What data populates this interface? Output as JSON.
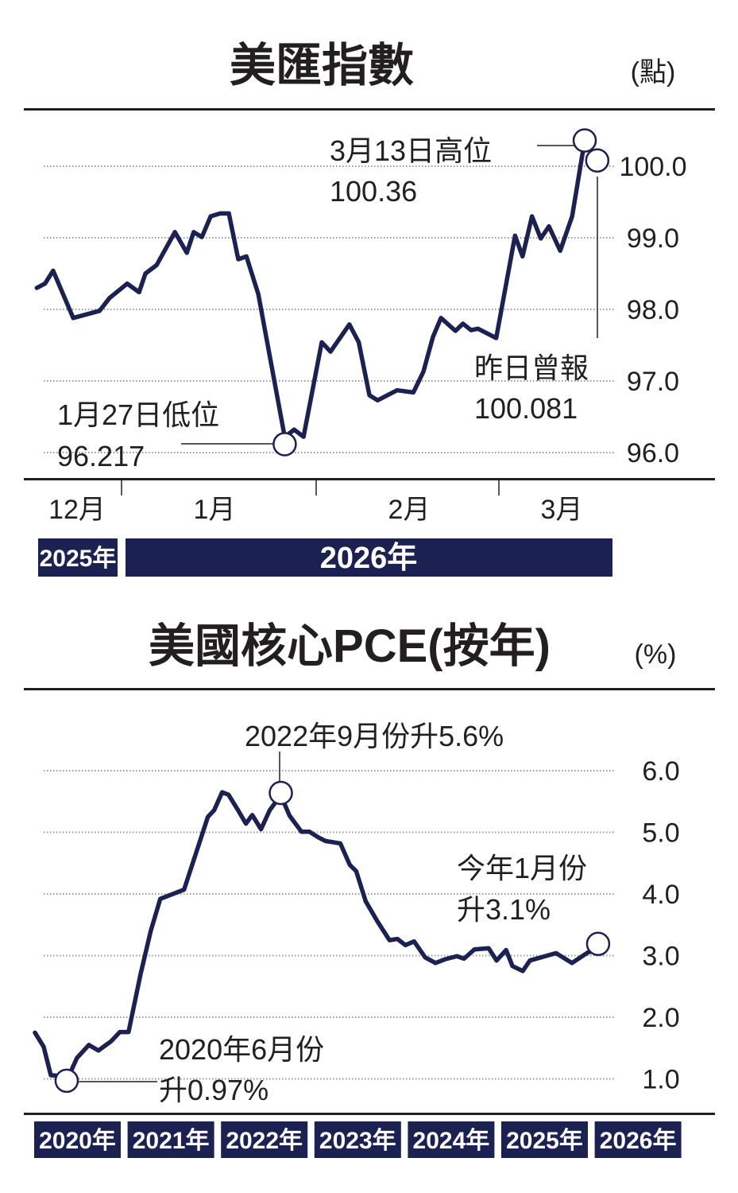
{
  "colors": {
    "line": "#1b2150",
    "bar": "#1b2150",
    "text": "#231f20",
    "grid": "#9a9a9a"
  },
  "chart_data": [
    {
      "type": "line",
      "title": "美匯指數",
      "unit": "(點)",
      "x_unit": "days from 2026-01-01",
      "ylim": [
        96.0,
        100.0
      ],
      "yticks": [
        "100.0",
        "99.0",
        "98.0",
        "97.0",
        "96.0"
      ],
      "ytick_values": [
        100,
        99,
        98,
        97,
        96
      ],
      "month_labels": [
        "12月",
        "1月",
        "2月",
        "3月"
      ],
      "year_labels": [
        "2025年",
        "2026年"
      ],
      "grid": true,
      "series": [
        {
          "name": "美匯指數",
          "points": [
            [
              -13.5,
              98.3
            ],
            [
              -12.2,
              98.36
            ],
            [
              -10.9,
              98.54
            ],
            [
              -7.7,
              97.88
            ],
            [
              -3.5,
              97.98
            ],
            [
              -1.9,
              98.16
            ],
            [
              0.9,
              98.36
            ],
            [
              2.8,
              98.24
            ],
            [
              3.8,
              98.5
            ],
            [
              5.6,
              98.62
            ],
            [
              8.5,
              99.08
            ],
            [
              10.4,
              98.79
            ],
            [
              11.5,
              99.08
            ],
            [
              12.8,
              99.01
            ],
            [
              14.2,
              99.3
            ],
            [
              15.7,
              99.34
            ],
            [
              17.1,
              99.34
            ],
            [
              18.6,
              98.7
            ],
            [
              19.9,
              98.74
            ],
            [
              21.8,
              98.21
            ],
            [
              26,
              96.217
            ],
            [
              27.5,
              96.32
            ],
            [
              29,
              96.22
            ],
            [
              31.9,
              97.54
            ],
            [
              33.3,
              97.41
            ],
            [
              36.3,
              97.79
            ],
            [
              37.8,
              97.54
            ],
            [
              39.5,
              96.8
            ],
            [
              40.8,
              96.73
            ],
            [
              43.9,
              96.87
            ],
            [
              46.5,
              96.84
            ],
            [
              48.1,
              97.13
            ],
            [
              49.6,
              97.61
            ],
            [
              50.9,
              97.88
            ],
            [
              53.2,
              97.7
            ],
            [
              54.4,
              97.8
            ],
            [
              55.7,
              97.71
            ],
            [
              56.8,
              97.73
            ],
            [
              59.7,
              97.6
            ],
            [
              62.7,
              99.03
            ],
            [
              63.9,
              98.74
            ],
            [
              65.4,
              99.3
            ],
            [
              66.8,
              98.99
            ],
            [
              68.1,
              99.16
            ],
            [
              69.9,
              98.82
            ],
            [
              71.8,
              99.3
            ],
            [
              73.8,
              100.36
            ],
            [
              75.8,
              100.081
            ]
          ]
        }
      ],
      "annotations": {
        "high": {
          "label": "3月13日高位",
          "value": "100.36",
          "x": 73.8,
          "y": 100.36
        },
        "low": {
          "label": "1月27日低位",
          "value": "96.217",
          "x": 26,
          "y": 96.217
        },
        "latest": {
          "label": "昨日曾報",
          "value": "100.081",
          "x": 75.8,
          "y": 100.081
        }
      }
    },
    {
      "type": "line",
      "title": "美國核心PCE(按年)",
      "unit": "(%)",
      "x_unit": "months from 2020-01",
      "ylim": [
        1.0,
        6.0
      ],
      "yticks": [
        "6.0",
        "5.0",
        "4.0",
        "3.0",
        "2.0",
        "1.0"
      ],
      "ytick_values": [
        6,
        5,
        4,
        3,
        2,
        1
      ],
      "year_labels": [
        "2020年",
        "2021年",
        "2022年",
        "2023年",
        "2024年",
        "2025年",
        "2026年"
      ],
      "grid": true,
      "series": [
        {
          "name": "核心PCE按年",
          "points": [
            [
              1,
              1.75
            ],
            [
              2.1,
              1.52
            ],
            [
              3,
              1.06
            ],
            [
              4,
              1.05
            ],
            [
              5,
              0.97
            ],
            [
              6.3,
              1.34
            ],
            [
              7.8,
              1.55
            ],
            [
              9,
              1.46
            ],
            [
              10.6,
              1.61
            ],
            [
              11.7,
              1.76
            ],
            [
              12.8,
              1.76
            ],
            [
              14.3,
              2.69
            ],
            [
              15.6,
              3.4
            ],
            [
              16.8,
              3.92
            ],
            [
              19.8,
              4.07
            ],
            [
              22.8,
              5.25
            ],
            [
              23.6,
              5.36
            ],
            [
              24.6,
              5.65
            ],
            [
              25.4,
              5.61
            ],
            [
              26.6,
              5.36
            ],
            [
              27.6,
              5.14
            ],
            [
              28.4,
              5.28
            ],
            [
              29.5,
              5.05
            ],
            [
              30.6,
              5.36
            ],
            [
              32,
              5.6
            ],
            [
              33.1,
              5.27
            ],
            [
              34.6,
              5.01
            ],
            [
              35.6,
              5.01
            ],
            [
              36.7,
              4.92
            ],
            [
              37.6,
              4.86
            ],
            [
              39.5,
              4.82
            ],
            [
              40.7,
              4.47
            ],
            [
              41.5,
              4.37
            ],
            [
              42.7,
              3.88
            ],
            [
              44.2,
              3.55
            ],
            [
              45.7,
              3.25
            ],
            [
              46.7,
              3.27
            ],
            [
              47.7,
              3.17
            ],
            [
              48.8,
              3.23
            ],
            [
              50.2,
              2.97
            ],
            [
              51.5,
              2.88
            ],
            [
              52.7,
              2.94
            ],
            [
              54.2,
              2.99
            ],
            [
              55.1,
              2.95
            ],
            [
              56.4,
              3.1
            ],
            [
              58.2,
              3.12
            ],
            [
              59.2,
              2.92
            ],
            [
              60.4,
              3.09
            ],
            [
              61.2,
              2.83
            ],
            [
              62.5,
              2.75
            ],
            [
              63.4,
              2.92
            ],
            [
              66.7,
              3.04
            ],
            [
              68.7,
              2.88
            ],
            [
              70.7,
              3.05
            ],
            [
              72,
              3.1
            ]
          ]
        }
      ],
      "annotations": {
        "peak": {
          "label": "2022年9月份升5.6%",
          "x": 32,
          "y": 5.6
        },
        "low": {
          "label": "2020年6月份",
          "value": "升0.97%",
          "x": 5,
          "y": 0.97
        },
        "latest": {
          "label": "今年1月份",
          "value": "升3.1%",
          "x": 72,
          "y": 3.1
        }
      }
    }
  ]
}
